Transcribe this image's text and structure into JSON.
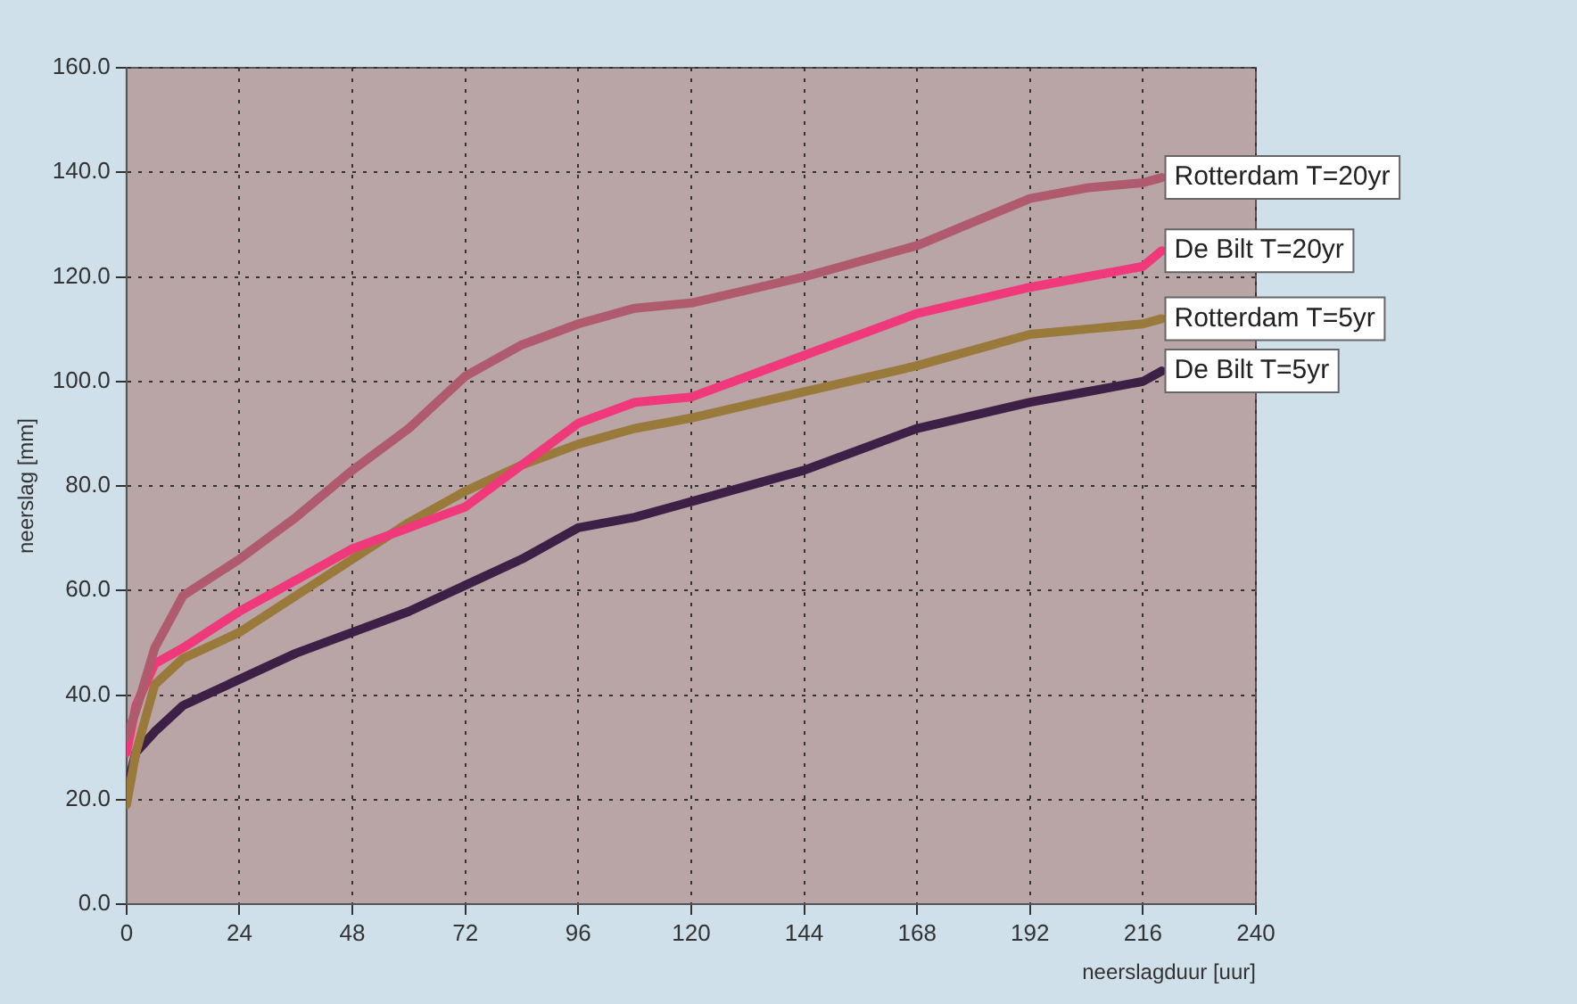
{
  "chart_data": {
    "type": "line",
    "xlabel": "neerslagduur [uur]",
    "ylabel": "neerslag [mm]",
    "xlim": [
      0,
      240
    ],
    "xticks": [
      0,
      24,
      48,
      72,
      96,
      120,
      144,
      168,
      192,
      216,
      240
    ],
    "ylim": [
      0,
      160
    ],
    "yticks": [
      {
        "value": 0,
        "label": "0.0"
      },
      {
        "value": 20,
        "label": "20.0"
      },
      {
        "value": 40,
        "label": "40.0"
      },
      {
        "value": 60,
        "label": "60.0"
      },
      {
        "value": 80,
        "label": "80.0"
      },
      {
        "value": 100,
        "label": "100.0"
      },
      {
        "value": 120,
        "label": "120.0"
      },
      {
        "value": 140,
        "label": "140.0"
      },
      {
        "value": 160,
        "label": "160.0"
      }
    ],
    "grid": true,
    "legend": false,
    "marker": "none",
    "line_style": "solid",
    "x": [
      0,
      2,
      6,
      12,
      24,
      36,
      48,
      60,
      72,
      84,
      96,
      108,
      120,
      144,
      168,
      192,
      204,
      216,
      220
    ],
    "series": [
      {
        "name": "Rotterdam T=20yr",
        "color": "#b05a6e",
        "values": [
          32,
          37,
          49,
          59,
          66,
          74,
          83,
          91,
          101,
          107,
          111,
          114,
          115,
          120,
          126,
          135,
          137,
          138,
          139
        ]
      },
      {
        "name": "De Bilt T=20yr",
        "color": "#f0397a",
        "values": [
          29,
          38,
          46,
          49,
          56,
          62,
          68,
          72,
          76,
          84,
          92,
          96,
          97,
          105,
          113,
          118,
          120,
          122,
          125
        ]
      },
      {
        "name": "Rotterdam T=5yr",
        "color": "#9a7a3a",
        "values": [
          19,
          29,
          42,
          47,
          52,
          59,
          66,
          73,
          79,
          84,
          88,
          91,
          93,
          98,
          103,
          109,
          110,
          111,
          112
        ]
      },
      {
        "name": "De Bilt T=5yr",
        "color": "#3e1f45",
        "values": [
          22,
          29,
          33,
          38,
          43,
          48,
          52,
          56,
          61,
          66,
          72,
          74,
          77,
          83,
          91,
          96,
          98,
          100,
          102
        ]
      }
    ]
  }
}
